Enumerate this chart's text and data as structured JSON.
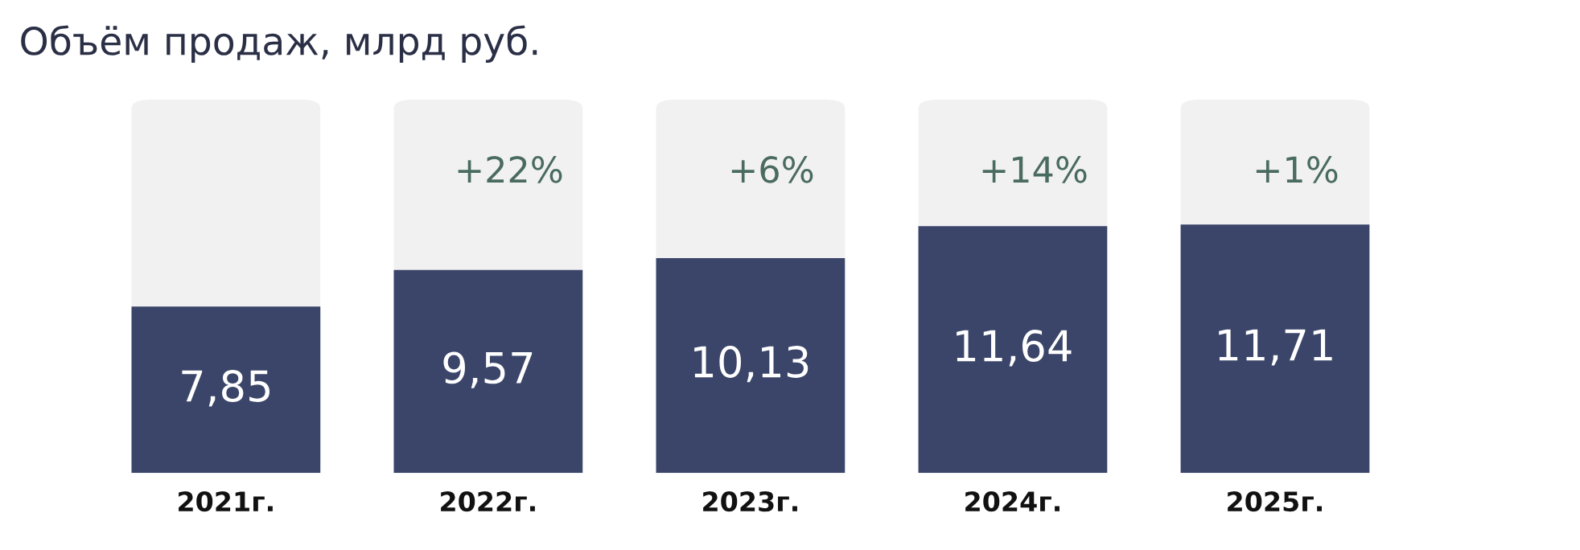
{
  "chart_data": {
    "type": "bar",
    "title": "Объём продаж, млрд руб.",
    "categories": [
      "2021г.",
      "2022г.",
      "2023г.",
      "2024г.",
      "2025г."
    ],
    "values": [
      7.85,
      9.57,
      10.13,
      11.64,
      11.71
    ],
    "value_labels": [
      "7,85",
      "9,57",
      "10,13",
      "11,64",
      "11,71"
    ],
    "color": "#3a4569",
    "annotations": [
      "+22%",
      "+6%",
      "+14%",
      "+1%"
    ],
    "grid": false,
    "legend": false
  }
}
